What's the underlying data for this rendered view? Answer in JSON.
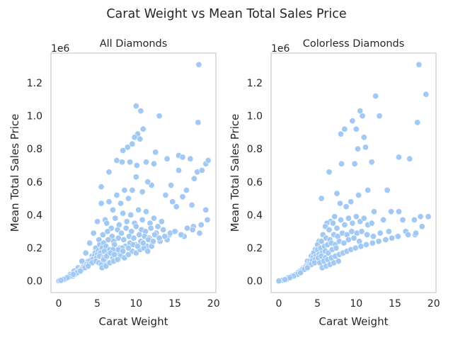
{
  "figure": {
    "title": "Carat Weight vs Mean Total Sales Price"
  },
  "colors": {
    "point": "#a1c9f4",
    "frame": "#cccccc",
    "text": "#262626"
  },
  "chart_data": [
    {
      "type": "scatter",
      "title": "All Diamonds",
      "xlabel": "Carat Weight",
      "ylabel": "Mean Total Sales Price",
      "y_offset_label": "1e6",
      "xlim": [
        -1,
        20.3
      ],
      "ylim": [
        -0.07,
        1.38
      ],
      "xticks": [
        0,
        5,
        10,
        15,
        20
      ],
      "yticks": [
        0.0,
        0.2,
        0.4,
        0.6,
        0.8,
        1.0,
        1.2
      ],
      "ytick_labels": [
        "0.0",
        "0.2",
        "0.4",
        "0.6",
        "0.8",
        "1.0",
        "1.2"
      ],
      "grid": false,
      "x": [
        18.1,
        10.0,
        10.6,
        13.0,
        10.9,
        10.2,
        9.8,
        10.5,
        9.5,
        8.9,
        8.3,
        12.5,
        15.5,
        16.0,
        17.0,
        18.0,
        19.0,
        19.3,
        17.9,
        14.0,
        12.3,
        11.3,
        10.1,
        9.2,
        7.5,
        8.2,
        6.5,
        5.5,
        15.5,
        14.5,
        17.5,
        18.5,
        19.0,
        16.5,
        16.0,
        17.2,
        13.8,
        14.7,
        15.2,
        12.0,
        11.5,
        10.8,
        10.0,
        9.5,
        9.0,
        8.5,
        8.0,
        7.5,
        7.0,
        6.5,
        6.0,
        5.5,
        5.0,
        4.5,
        4.0,
        3.5,
        3.0,
        2.5,
        2.0,
        1.5,
        1.0,
        0.5,
        0.2,
        6.2,
        6.8,
        7.3,
        7.8,
        8.3,
        8.8,
        9.3,
        9.8,
        10.3,
        10.8,
        11.3,
        11.8,
        12.3,
        12.8,
        13.3,
        5.2,
        5.7,
        6.3,
        6.9,
        7.6,
        8.1,
        8.7,
        9.4,
        10.0,
        10.7,
        11.2,
        11.9,
        12.6,
        13.5,
        14.3,
        15.1,
        16.2,
        17.4,
        18.2,
        4.8,
        5.3,
        5.8,
        6.4,
        7.1,
        7.7,
        8.4,
        9.1,
        9.7,
        10.4,
        11.1,
        11.7,
        12.4,
        13.1,
        14.0,
        4.3,
        4.7,
        5.1,
        5.6,
        6.1,
        6.6,
        7.2,
        7.9,
        8.6,
        9.2,
        9.9,
        10.6,
        11.4,
        12.1,
        3.8,
        4.2,
        4.6,
        5.0,
        5.4,
        5.9,
        6.4,
        7.0,
        7.6,
        8.2,
        3.2,
        3.6,
        4.0,
        4.4,
        4.9,
        5.3,
        5.8,
        6.3,
        2.8,
        3.1,
        3.5,
        3.9,
        4.3,
        4.8,
        5.2,
        2.2,
        2.6,
        3.0,
        3.4,
        3.8,
        1.8,
        2.1,
        2.4,
        2.8,
        1.2,
        1.5,
        1.9,
        0.8,
        1.1,
        0.4,
        0.6,
        0.0,
        0.1,
        0.3,
        5.5,
        6.0,
        6.5,
        7.0,
        7.5,
        8.0,
        8.5,
        9.0,
        9.5,
        10.0,
        10.5,
        11.0,
        11.5,
        12.0,
        5.8,
        6.2,
        6.7,
        7.2,
        7.7,
        8.3,
        9.0,
        9.6,
        10.2,
        10.9,
        11.6,
        12.2,
        13.0,
        13.7,
        14.4,
        15.0,
        15.8,
        16.6,
        17.3,
        18.4,
        19.2,
        5.6,
        6.1,
        6.6,
        7.1,
        7.6
      ],
      "y": [
        1.31,
        1.06,
        1.03,
        1.0,
        0.92,
        0.89,
        0.87,
        0.86,
        0.83,
        0.81,
        0.79,
        0.78,
        0.76,
        0.75,
        0.74,
        0.96,
        0.71,
        0.73,
        0.66,
        0.74,
        0.71,
        0.72,
        0.7,
        0.72,
        0.73,
        0.72,
        0.66,
        0.57,
        0.67,
        0.58,
        0.62,
        0.67,
        0.43,
        0.55,
        0.51,
        0.46,
        0.52,
        0.48,
        0.45,
        0.58,
        0.6,
        0.54,
        0.63,
        0.55,
        0.5,
        0.55,
        0.47,
        0.52,
        0.43,
        0.48,
        0.37,
        0.47,
        0.36,
        0.29,
        0.23,
        0.17,
        0.12,
        0.08,
        0.06,
        0.04,
        0.02,
        0.01,
        0.005,
        0.35,
        0.32,
        0.38,
        0.34,
        0.41,
        0.36,
        0.4,
        0.35,
        0.43,
        0.37,
        0.42,
        0.35,
        0.38,
        0.33,
        0.36,
        0.25,
        0.28,
        0.3,
        0.27,
        0.31,
        0.29,
        0.32,
        0.3,
        0.33,
        0.31,
        0.3,
        0.32,
        0.29,
        0.31,
        0.28,
        0.3,
        0.27,
        0.33,
        0.29,
        0.2,
        0.22,
        0.23,
        0.25,
        0.24,
        0.26,
        0.25,
        0.27,
        0.26,
        0.28,
        0.27,
        0.26,
        0.28,
        0.24,
        0.25,
        0.15,
        0.17,
        0.18,
        0.2,
        0.21,
        0.19,
        0.22,
        0.2,
        0.21,
        0.23,
        0.22,
        0.24,
        0.21,
        0.23,
        0.12,
        0.13,
        0.15,
        0.16,
        0.17,
        0.18,
        0.16,
        0.19,
        0.17,
        0.2,
        0.09,
        0.1,
        0.12,
        0.13,
        0.14,
        0.15,
        0.14,
        0.16,
        0.07,
        0.08,
        0.09,
        0.1,
        0.11,
        0.12,
        0.11,
        0.05,
        0.06,
        0.07,
        0.08,
        0.09,
        0.03,
        0.04,
        0.05,
        0.06,
        0.02,
        0.03,
        0.04,
        0.01,
        0.02,
        0.006,
        0.01,
        0.0,
        0.002,
        0.004,
        0.1,
        0.12,
        0.11,
        0.14,
        0.13,
        0.15,
        0.14,
        0.16,
        0.18,
        0.17,
        0.19,
        0.2,
        0.18,
        0.21,
        0.13,
        0.15,
        0.17,
        0.16,
        0.19,
        0.18,
        0.2,
        0.22,
        0.21,
        0.23,
        0.25,
        0.24,
        0.26,
        0.27,
        0.29,
        0.3,
        0.28,
        0.32,
        0.31,
        0.34,
        0.37,
        0.08,
        0.09,
        0.11,
        0.12,
        0.13
      ]
    },
    {
      "type": "scatter",
      "title": "Colorless Diamonds",
      "xlabel": "Carat Weight",
      "ylabel": "Mean Total Sales Price",
      "y_offset_label": "1e6",
      "xlim": [
        -1,
        20.3
      ],
      "ylim": [
        -0.07,
        1.38
      ],
      "xticks": [
        0,
        5,
        10,
        15,
        20
      ],
      "yticks": [
        0.0,
        0.2,
        0.4,
        0.6,
        0.8,
        1.0,
        1.2
      ],
      "ytick_labels": [
        "0.0",
        "0.2",
        "0.4",
        "0.6",
        "0.8",
        "1.0",
        "1.2"
      ],
      "grid": false,
      "x": [
        18.1,
        19.0,
        12.5,
        10.5,
        10.8,
        13.0,
        9.5,
        8.5,
        8.0,
        10.0,
        11.0,
        17.9,
        15.5,
        16.9,
        10.2,
        11.2,
        9.8,
        12.0,
        6.5,
        8.1,
        7.5,
        5.5,
        14.0,
        15.5,
        17.5,
        18.3,
        19.3,
        16.0,
        14.5,
        13.5,
        12.3,
        11.5,
        10.3,
        9.3,
        8.7,
        7.9,
        7.2,
        6.7,
        6.2,
        5.7,
        5.2,
        4.7,
        4.2,
        3.7,
        3.2,
        2.7,
        2.2,
        1.7,
        1.2,
        0.7,
        0.3,
        0.1,
        6.0,
        6.5,
        7.0,
        7.5,
        8.0,
        8.5,
        9.0,
        9.5,
        10.0,
        10.5,
        11.0,
        11.5,
        12.0,
        5.0,
        5.5,
        6.1,
        6.6,
        7.1,
        7.6,
        8.2,
        8.8,
        9.4,
        10.1,
        10.7,
        11.4,
        12.2,
        13.1,
        14.2,
        15.3,
        16.4,
        17.6,
        18.5,
        4.5,
        5.0,
        5.4,
        5.9,
        6.3,
        6.8,
        7.3,
        7.8,
        8.4,
        9.0,
        9.7,
        10.4,
        4.0,
        4.4,
        4.8,
        5.2,
        5.6,
        6.0,
        6.4,
        6.9,
        7.4,
        3.5,
        3.9,
        4.3,
        4.7,
        5.1,
        5.5,
        6.0,
        3.0,
        3.4,
        3.8,
        4.2,
        4.6,
        2.5,
        2.9,
        3.3,
        3.7,
        2.0,
        2.4,
        2.8,
        1.5,
        1.9,
        1.0,
        1.4,
        0.5,
        0.8,
        0.0,
        5.3,
        5.8,
        6.3,
        6.8,
        7.3,
        7.8,
        8.3,
        8.8,
        9.3,
        9.9,
        10.6,
        11.3,
        12.1,
        12.9,
        13.8,
        14.6,
        15.4,
        16.7,
        17.7,
        5.6,
        6.1,
        6.6,
        7.1,
        7.7
      ],
      "y": [
        1.31,
        1.13,
        1.12,
        1.03,
        1.0,
        1.0,
        0.97,
        0.92,
        0.89,
        0.92,
        0.87,
        0.96,
        0.75,
        0.74,
        0.8,
        0.81,
        0.71,
        0.72,
        0.66,
        0.71,
        0.53,
        0.5,
        0.55,
        0.42,
        0.37,
        0.39,
        0.39,
        0.37,
        0.42,
        0.37,
        0.42,
        0.55,
        0.52,
        0.48,
        0.45,
        0.47,
        0.39,
        0.36,
        0.35,
        0.28,
        0.24,
        0.19,
        0.15,
        0.12,
        0.08,
        0.06,
        0.04,
        0.03,
        0.02,
        0.01,
        0.004,
        0.001,
        0.33,
        0.31,
        0.35,
        0.32,
        0.37,
        0.34,
        0.38,
        0.35,
        0.39,
        0.36,
        0.38,
        0.34,
        0.35,
        0.22,
        0.24,
        0.26,
        0.25,
        0.28,
        0.27,
        0.29,
        0.28,
        0.3,
        0.29,
        0.3,
        0.28,
        0.27,
        0.29,
        0.3,
        0.27,
        0.3,
        0.28,
        0.33,
        0.17,
        0.19,
        0.2,
        0.21,
        0.22,
        0.23,
        0.22,
        0.24,
        0.23,
        0.25,
        0.26,
        0.24,
        0.12,
        0.14,
        0.15,
        0.16,
        0.17,
        0.18,
        0.17,
        0.19,
        0.2,
        0.09,
        0.1,
        0.12,
        0.13,
        0.14,
        0.15,
        0.14,
        0.07,
        0.08,
        0.09,
        0.1,
        0.11,
        0.05,
        0.06,
        0.07,
        0.08,
        0.03,
        0.04,
        0.05,
        0.02,
        0.03,
        0.01,
        0.02,
        0.005,
        0.008,
        0.0,
        0.11,
        0.12,
        0.13,
        0.14,
        0.15,
        0.16,
        0.17,
        0.18,
        0.19,
        0.2,
        0.21,
        0.22,
        0.23,
        0.24,
        0.25,
        0.26,
        0.27,
        0.28,
        0.29,
        0.08,
        0.09,
        0.1,
        0.11,
        0.12
      ]
    }
  ]
}
